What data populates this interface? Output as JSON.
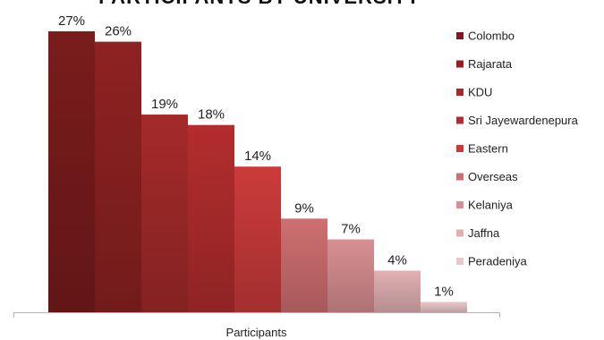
{
  "chart_data": {
    "type": "bar",
    "title": "PARTICIPANTS BY UNIVERSITY",
    "xlabel": "Participants",
    "ylabel": "",
    "ylim": [
      0,
      30
    ],
    "grid": false,
    "legend_position": "right",
    "value_format": "%",
    "series": [
      {
        "name": "Colombo",
        "value": 27,
        "label": "27%",
        "color": "#7a1c1c"
      },
      {
        "name": "Rajarata",
        "value": 26,
        "label": "26%",
        "color": "#8f2222"
      },
      {
        "name": "KDU",
        "value": 19,
        "label": "19%",
        "color": "#a52a2a"
      },
      {
        "name": "Sri Jayewardenepura",
        "value": 18,
        "label": "18%",
        "color": "#b32d2d"
      },
      {
        "name": "Eastern",
        "value": 14,
        "label": "14%",
        "color": "#cc3b3b"
      },
      {
        "name": "Overseas",
        "value": 9,
        "label": "9%",
        "color": "#cf6f70"
      },
      {
        "name": "Kelaniya",
        "value": 7,
        "label": "7%",
        "color": "#d88f92"
      },
      {
        "name": "Jaffna",
        "value": 4,
        "label": "4%",
        "color": "#e2b0b3"
      },
      {
        "name": "Peradeniya",
        "value": 1,
        "label": "1%",
        "color": "#ebc9cb"
      }
    ]
  }
}
